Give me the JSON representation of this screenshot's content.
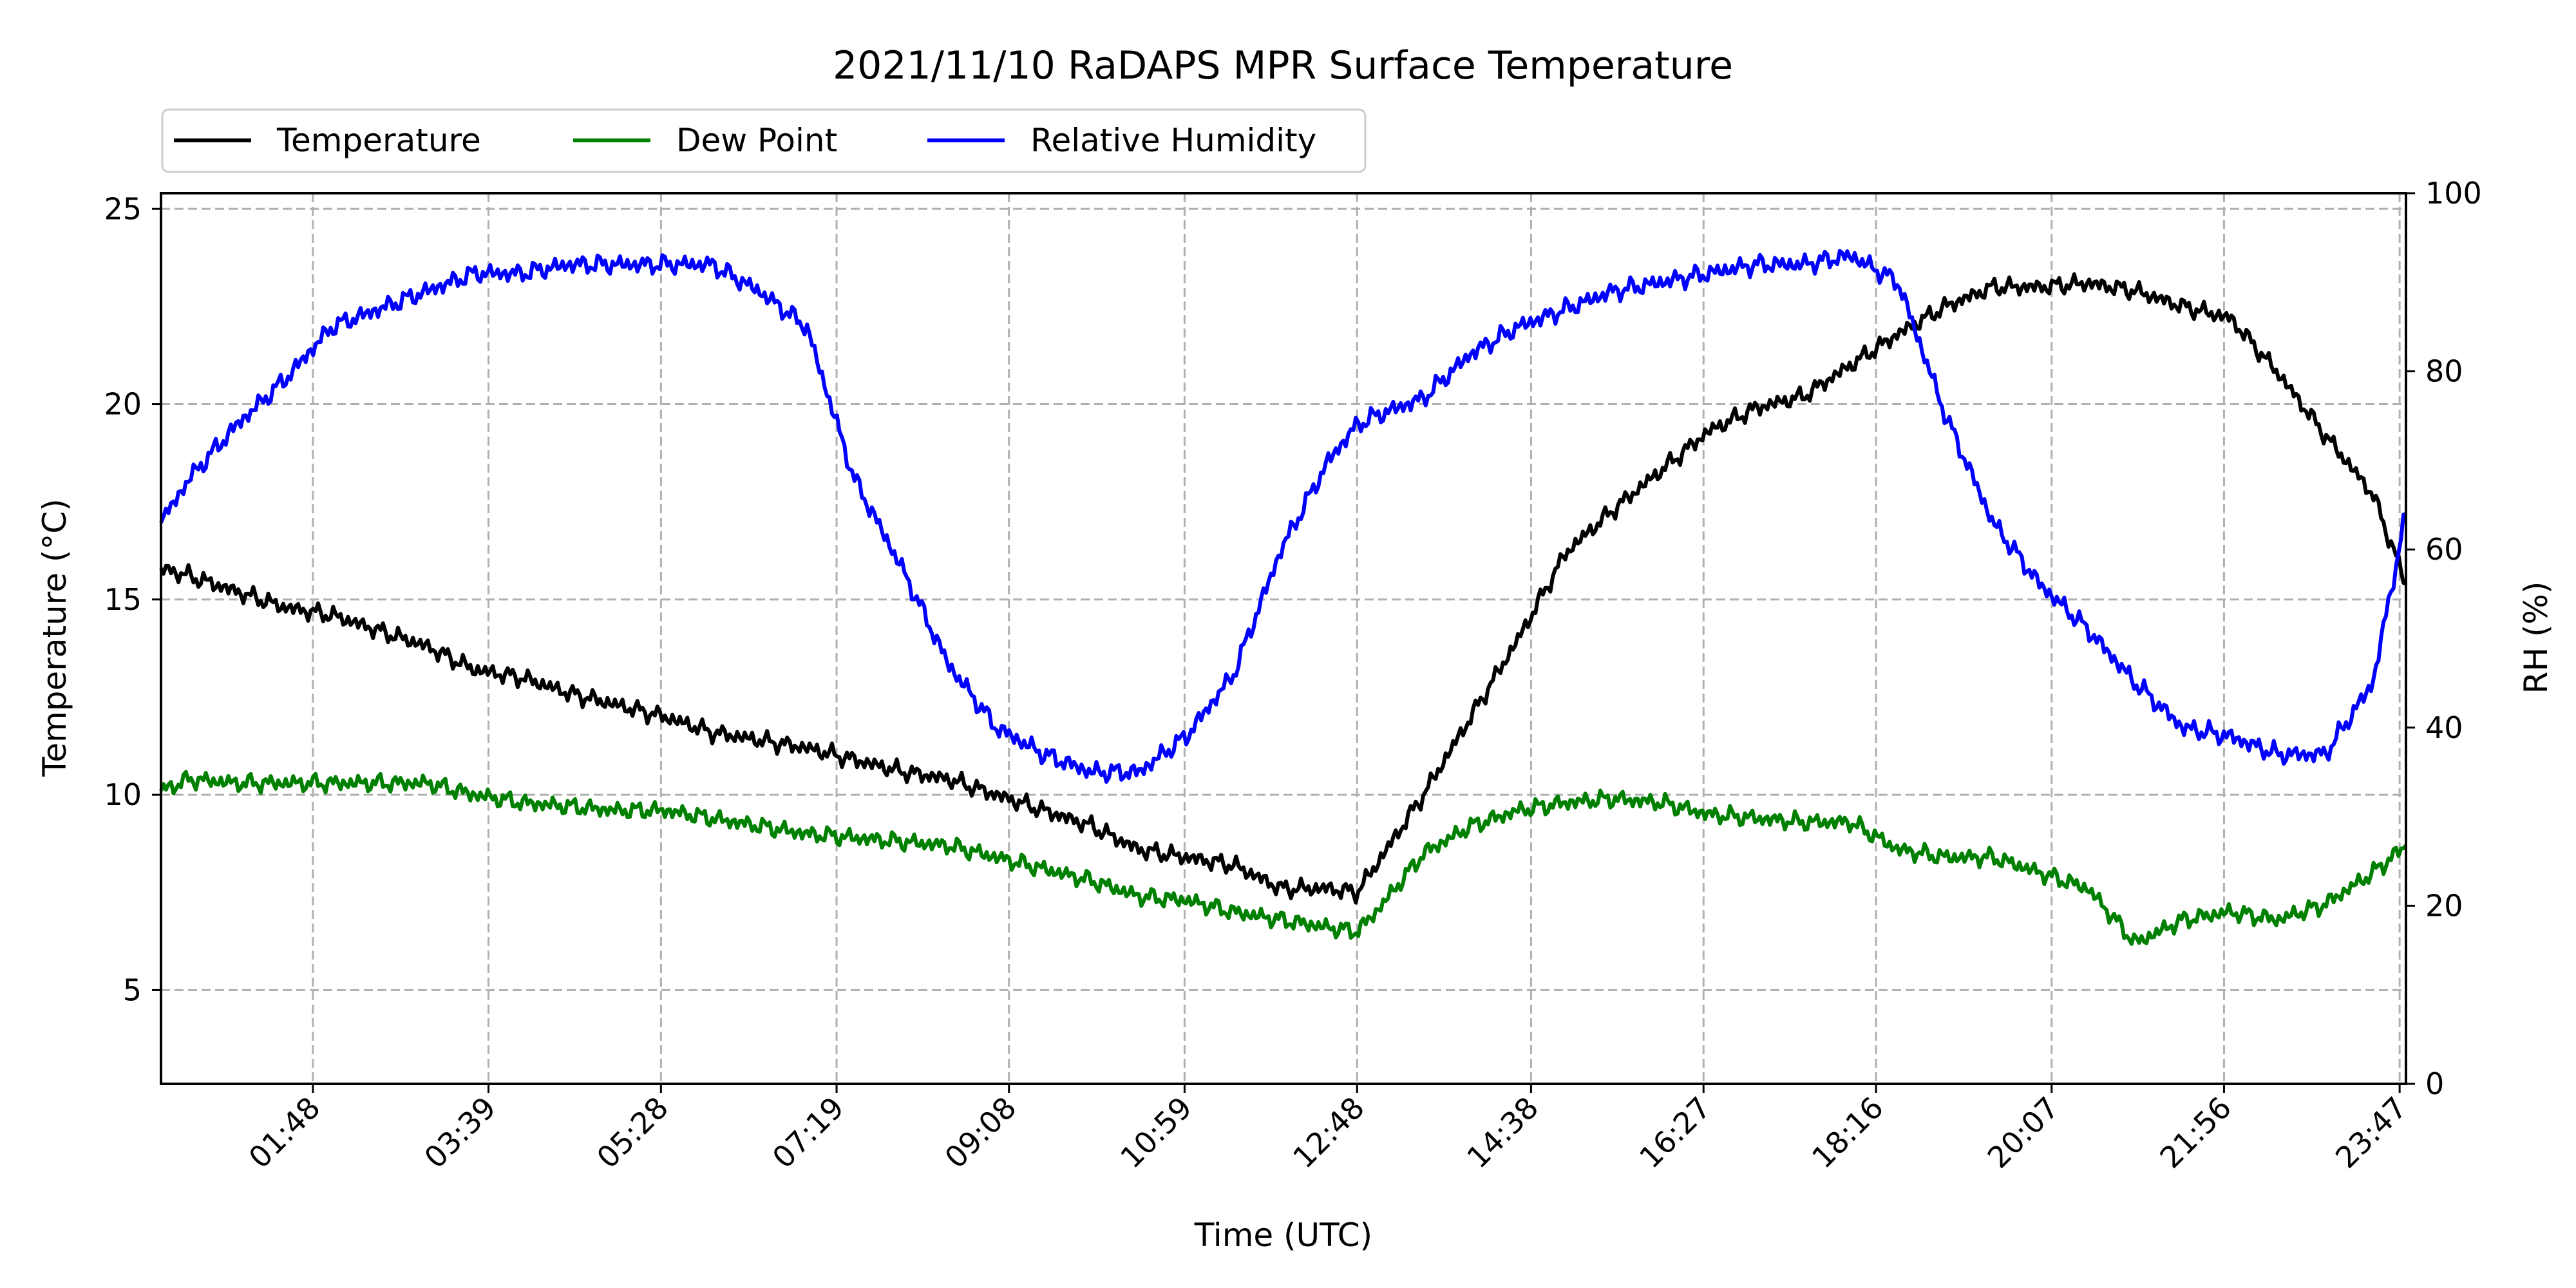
{
  "chart_data": {
    "type": "line",
    "title": "2021/11/10 RaDAPS MPR Surface Temperature",
    "xlabel": "Time (UTC)",
    "ylabel": "Temperature ($^\\circ$C)",
    "ylabel_display": "Temperature (°C)",
    "y2label": "RH (%)",
    "ylim": [
      2.6,
      25.4
    ],
    "y2lim": [
      0,
      100
    ],
    "x_unit": "time UTC (hours)",
    "xlim": [
      0.2,
      23.85
    ],
    "x_ticks": [
      {
        "value": 1.8,
        "label": "01:48"
      },
      {
        "value": 3.65,
        "label": "03:39"
      },
      {
        "value": 5.467,
        "label": "05:28"
      },
      {
        "value": 7.317,
        "label": "07:19"
      },
      {
        "value": 9.133,
        "label": "09:08"
      },
      {
        "value": 10.983,
        "label": "10:59"
      },
      {
        "value": 12.8,
        "label": "12:48"
      },
      {
        "value": 14.633,
        "label": "14:38"
      },
      {
        "value": 16.45,
        "label": "16:27"
      },
      {
        "value": 18.267,
        "label": "18:16"
      },
      {
        "value": 20.117,
        "label": "20:07"
      },
      {
        "value": 21.933,
        "label": "21:56"
      },
      {
        "value": 23.783,
        "label": "23:47"
      }
    ],
    "y_ticks": [
      5,
      10,
      15,
      20,
      25
    ],
    "y2_ticks": [
      0,
      20,
      40,
      60,
      80,
      100
    ],
    "grid": true,
    "legend_position": "top-left",
    "legend_entries": [
      "Temperature",
      "Dew Point",
      "Relative Humidity"
    ],
    "x": [
      0.2,
      0.5,
      1.0,
      1.5,
      2.0,
      2.5,
      3.0,
      3.5,
      4.0,
      4.5,
      5.0,
      5.5,
      6.0,
      6.5,
      7.0,
      7.5,
      8.0,
      8.5,
      9.0,
      9.5,
      10.0,
      10.5,
      11.0,
      11.5,
      12.0,
      12.5,
      12.8,
      13.0,
      13.5,
      14.0,
      14.5,
      15.0,
      15.5,
      16.0,
      16.5,
      17.0,
      17.5,
      18.0,
      18.5,
      19.0,
      19.5,
      20.0,
      20.5,
      21.0,
      21.5,
      22.0,
      22.5,
      23.0,
      23.5,
      23.85
    ],
    "series": [
      {
        "name": "Temperature",
        "color": "#000000",
        "axis": "left",
        "values": [
          15.8,
          15.6,
          15.2,
          14.8,
          14.6,
          14.2,
          13.8,
          13.2,
          13.0,
          12.6,
          12.3,
          12.0,
          11.6,
          11.4,
          11.2,
          10.9,
          10.6,
          10.4,
          10.0,
          9.6,
          9.2,
          8.6,
          8.4,
          8.2,
          7.6,
          7.6,
          7.5,
          8.2,
          10.0,
          12.0,
          14.0,
          16.2,
          17.3,
          18.3,
          19.3,
          19.9,
          20.2,
          21.0,
          21.8,
          22.5,
          23.0,
          23.0,
          23.1,
          22.9,
          22.5,
          22.2,
          20.8,
          19.2,
          17.7,
          15.4
        ],
        "noise": 0.25
      },
      {
        "name": "Dew Point",
        "color": "#008000",
        "axis": "left",
        "values": [
          10.1,
          10.4,
          10.3,
          10.3,
          10.3,
          10.3,
          10.3,
          10.0,
          9.8,
          9.7,
          9.6,
          9.6,
          9.4,
          9.2,
          9.0,
          8.9,
          8.8,
          8.7,
          8.4,
          8.1,
          7.8,
          7.4,
          7.3,
          7.0,
          6.8,
          6.6,
          6.5,
          7.0,
          8.5,
          9.2,
          9.6,
          9.8,
          9.9,
          9.8,
          9.5,
          9.4,
          9.3,
          9.3,
          8.6,
          8.4,
          8.4,
          8.0,
          7.6,
          6.2,
          6.8,
          7.0,
          6.8,
          7.2,
          8.0,
          8.7
        ],
        "noise": 0.25
      },
      {
        "name": "Relative Humidity",
        "color": "#0000ff",
        "axis": "right",
        "values": [
          63,
          68,
          74,
          79,
          85,
          87,
          89,
          91,
          91,
          92,
          92,
          92,
          92,
          89,
          85,
          68,
          58,
          47,
          40,
          37,
          35,
          35,
          39,
          46,
          60,
          70,
          74,
          75,
          77,
          82,
          85,
          87,
          89,
          90,
          91,
          92,
          92,
          93,
          90,
          75,
          63,
          56,
          51,
          45,
          40,
          39,
          37,
          37,
          45,
          64
        ],
        "noise": 1.2
      }
    ]
  }
}
